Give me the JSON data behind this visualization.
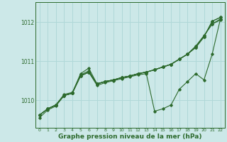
{
  "xlabel": "Graphe pression niveau de la mer (hPa)",
  "bg_color": "#cce8e8",
  "grid_color": "#b0d8d8",
  "line_color": "#2d6a2d",
  "text_color": "#2d6a2d",
  "xlim": [
    -0.5,
    22.5
  ],
  "ylim": [
    1009.3,
    1012.5
  ],
  "yticks": [
    1010,
    1011,
    1012
  ],
  "xticks": [
    0,
    1,
    2,
    3,
    4,
    5,
    6,
    7,
    8,
    9,
    10,
    11,
    12,
    13,
    14,
    15,
    16,
    17,
    18,
    19,
    20,
    21,
    22
  ],
  "lines": [
    {
      "x": [
        0,
        1,
        2,
        3,
        4,
        5,
        6,
        7,
        8,
        9,
        10,
        11,
        12,
        13,
        14,
        15,
        16,
        17,
        18,
        19,
        20,
        21,
        22
      ],
      "y": [
        1009.62,
        1009.78,
        1009.88,
        1010.12,
        1010.18,
        1010.62,
        1010.72,
        1010.42,
        1010.48,
        1010.52,
        1010.58,
        1010.62,
        1010.68,
        1010.72,
        1010.78,
        1010.85,
        1010.92,
        1011.05,
        1011.18,
        1011.38,
        1011.65,
        1011.95,
        1012.05
      ]
    },
    {
      "x": [
        0,
        1,
        2,
        3,
        4,
        5,
        6,
        7,
        8,
        9,
        10,
        11,
        12,
        13,
        14,
        15,
        16,
        17,
        18,
        19,
        20,
        21,
        22
      ],
      "y": [
        1009.62,
        1009.78,
        1009.88,
        1010.12,
        1010.18,
        1010.68,
        1010.82,
        1010.42,
        1010.48,
        1010.52,
        1010.58,
        1010.62,
        1010.68,
        1010.72,
        1010.78,
        1010.85,
        1010.92,
        1011.05,
        1011.18,
        1011.38,
        1011.65,
        1011.95,
        1012.08
      ]
    },
    {
      "x": [
        0,
        1,
        2,
        3,
        4,
        5,
        6,
        7,
        8,
        9,
        10,
        11,
        12,
        13,
        14,
        15,
        16,
        17,
        18,
        19,
        20,
        21,
        22
      ],
      "y": [
        1009.62,
        1009.78,
        1009.88,
        1010.12,
        1010.18,
        1010.62,
        1010.72,
        1010.42,
        1010.48,
        1010.52,
        1010.58,
        1010.62,
        1010.68,
        1010.72,
        1010.78,
        1010.85,
        1010.92,
        1011.05,
        1011.18,
        1011.35,
        1011.62,
        1012.02,
        1012.12
      ]
    },
    {
      "x": [
        0,
        1,
        2,
        3,
        4,
        5,
        6,
        7,
        8,
        9,
        10,
        11,
        12,
        13,
        14,
        15,
        16,
        17,
        18,
        19,
        20,
        21,
        22
      ],
      "y": [
        1009.62,
        1009.78,
        1009.88,
        1010.15,
        1010.2,
        1010.65,
        1010.75,
        1010.42,
        1010.48,
        1010.52,
        1010.58,
        1010.62,
        1010.68,
        1010.72,
        1010.78,
        1010.85,
        1010.92,
        1011.05,
        1011.18,
        1011.35,
        1011.62,
        1012.02,
        1012.12
      ]
    },
    {
      "x": [
        0,
        1,
        2,
        3,
        4,
        5,
        6,
        7,
        8,
        9,
        10,
        11,
        12,
        13,
        14,
        15,
        16,
        17,
        18,
        19,
        20,
        21,
        22
      ],
      "y": [
        1009.55,
        1009.75,
        1009.85,
        1010.12,
        1010.18,
        1010.62,
        1010.72,
        1010.38,
        1010.45,
        1010.5,
        1010.55,
        1010.6,
        1010.65,
        1010.68,
        1009.72,
        1009.78,
        1009.88,
        1010.28,
        1010.48,
        1010.68,
        1010.52,
        1011.18,
        1012.08
      ]
    }
  ]
}
